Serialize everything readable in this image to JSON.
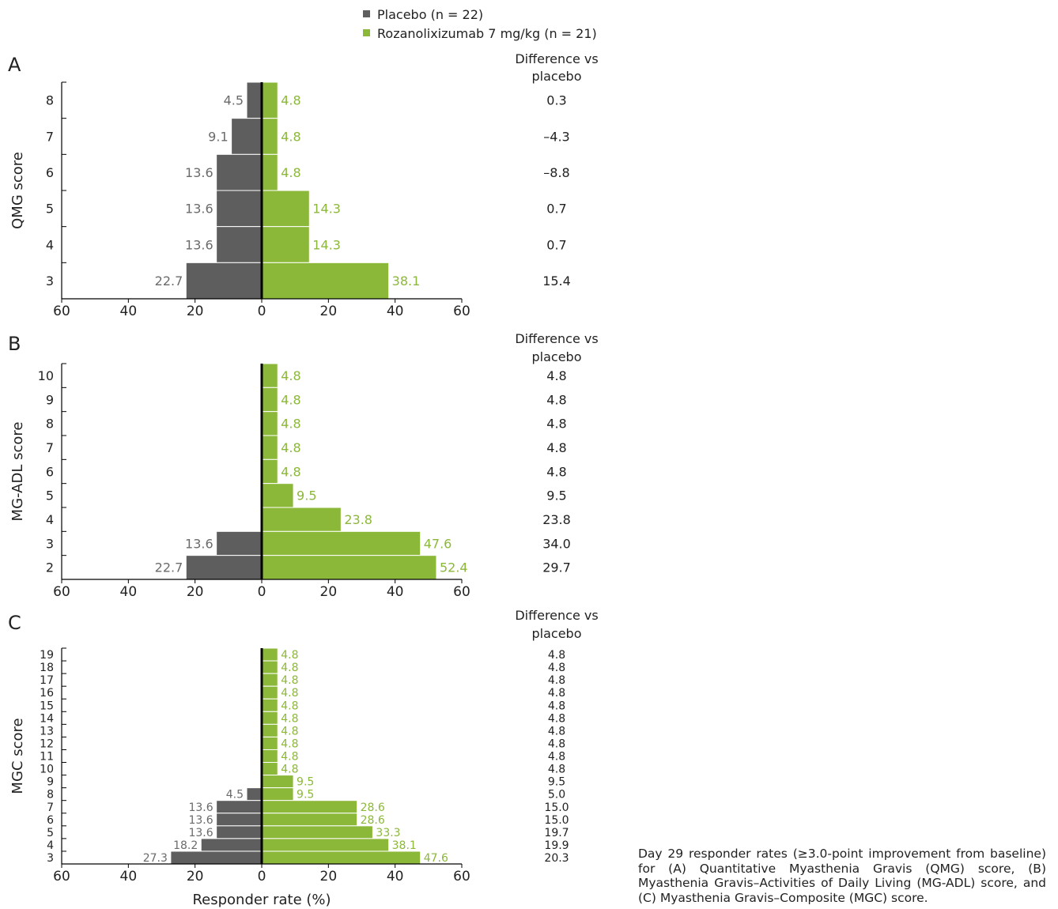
{
  "legend": {
    "placebo_label": "Placebo (n = 22)",
    "roza_label": "Rozanolixizumab 7 mg/kg (n = 21)"
  },
  "colors": {
    "placebo": "#5e5e5e",
    "rozanolixizumab": "#8cb83a",
    "axis": "#000000"
  },
  "x_axis_label": "Responder rate (%)",
  "caption": "Day 29 responder rates (≥3.0-point improvement from baseline) for (A) Quantitative Myasthenia Gravis (QMG) score, (B) Myasthenia Gravis–Activities of Daily Living (MG-ADL) score, and (C) Myasthenia Gravis–Composite (MGC) score.",
  "chart_data": [
    {
      "type": "bar",
      "panel": "A",
      "ylabel": "QMG score",
      "difference_header": "Difference vs placebo",
      "xlim": [
        -60,
        60
      ],
      "xticks": [
        "60",
        "40",
        "20",
        "0",
        "20",
        "40",
        "60"
      ],
      "categories": [
        "8",
        "7",
        "6",
        "5",
        "4",
        "3"
      ],
      "series": [
        {
          "name": "Placebo (n = 22)",
          "values": [
            4.5,
            9.1,
            13.6,
            13.6,
            13.6,
            22.7
          ],
          "labels": [
            "4.5",
            "9.1",
            "13.6",
            "13.6",
            "13.6",
            "22.7"
          ]
        },
        {
          "name": "Rozanolixizumab 7 mg/kg (n = 21)",
          "values": [
            4.8,
            4.8,
            4.8,
            14.3,
            14.3,
            38.1
          ],
          "labels": [
            "4.8",
            "4.8",
            "4.8",
            "14.3",
            "14.3",
            "38.1"
          ]
        }
      ],
      "difference": [
        "0.3",
        "–4.3",
        "–8.8",
        "0.7",
        "0.7",
        "15.4"
      ]
    },
    {
      "type": "bar",
      "panel": "B",
      "ylabel": "MG-ADL score",
      "difference_header": "Difference vs placebo",
      "xlim": [
        -60,
        60
      ],
      "xticks": [
        "60",
        "40",
        "20",
        "0",
        "20",
        "40",
        "60"
      ],
      "categories": [
        "10",
        "9",
        "8",
        "7",
        "6",
        "5",
        "4",
        "3",
        "2"
      ],
      "series": [
        {
          "name": "Placebo (n = 22)",
          "values": [
            0,
            0,
            0,
            0,
            0,
            0,
            0,
            13.6,
            22.7
          ],
          "labels": [
            "",
            "",
            "",
            "",
            "",
            "",
            "",
            "13.6",
            "22.7"
          ]
        },
        {
          "name": "Rozanolixizumab 7 mg/kg (n = 21)",
          "values": [
            4.8,
            4.8,
            4.8,
            4.8,
            4.8,
            9.5,
            23.8,
            47.6,
            52.4
          ],
          "labels": [
            "4.8",
            "4.8",
            "4.8",
            "4.8",
            "4.8",
            "9.5",
            "23.8",
            "47.6",
            "52.4"
          ]
        }
      ],
      "difference": [
        "4.8",
        "4.8",
        "4.8",
        "4.8",
        "4.8",
        "9.5",
        "23.8",
        "34.0",
        "29.7"
      ]
    },
    {
      "type": "bar",
      "panel": "C",
      "ylabel": "MGC score",
      "difference_header": "Difference vs placebo",
      "xlim": [
        -60,
        60
      ],
      "xticks": [
        "60",
        "40",
        "20",
        "0",
        "20",
        "40",
        "60"
      ],
      "categories": [
        "19",
        "18",
        "17",
        "16",
        "15",
        "14",
        "13",
        "12",
        "11",
        "10",
        "9",
        "8",
        "7",
        "6",
        "5",
        "4",
        "3"
      ],
      "series": [
        {
          "name": "Placebo (n = 22)",
          "values": [
            0,
            0,
            0,
            0,
            0,
            0,
            0,
            0,
            0,
            0,
            0,
            4.5,
            13.6,
            13.6,
            13.6,
            18.2,
            27.3
          ],
          "labels": [
            "",
            "",
            "",
            "",
            "",
            "",
            "",
            "",
            "",
            "",
            "",
            "4.5",
            "13.6",
            "13.6",
            "13.6",
            "18.2",
            "27.3"
          ]
        },
        {
          "name": "Rozanolixizumab 7 mg/kg (n = 21)",
          "values": [
            4.8,
            4.8,
            4.8,
            4.8,
            4.8,
            4.8,
            4.8,
            4.8,
            4.8,
            4.8,
            9.5,
            9.5,
            28.6,
            28.6,
            33.3,
            38.1,
            47.6
          ],
          "labels": [
            "4.8",
            "4.8",
            "4.8",
            "4.8",
            "4.8",
            "4.8",
            "4.8",
            "4.8",
            "4.8",
            "4.8",
            "9.5",
            "9.5",
            "28.6",
            "28.6",
            "33.3",
            "38.1",
            "47.6"
          ]
        }
      ],
      "difference": [
        "4.8",
        "4.8",
        "4.8",
        "4.8",
        "4.8",
        "4.8",
        "4.8",
        "4.8",
        "4.8",
        "4.8",
        "9.5",
        "5.0",
        "15.0",
        "15.0",
        "19.7",
        "19.9",
        "20.3"
      ]
    }
  ]
}
